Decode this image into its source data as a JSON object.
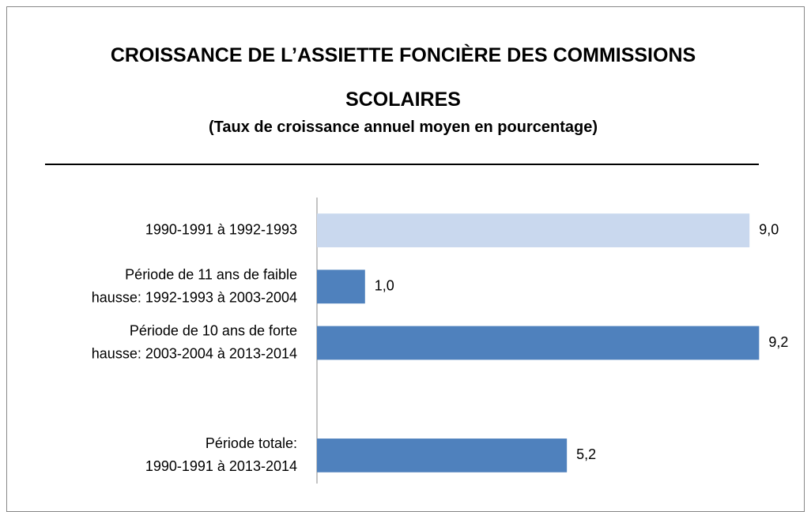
{
  "chart_data": {
    "type": "barh",
    "title": "CROISSANCE DE L’ASSIETTE FONCIÈRE DES COMMISSIONS SCOLAIRES",
    "subtitle": "(Taux de croissance annuel moyen en pourcentage)",
    "categories": [
      "1990-1991 à 1992-1993",
      "Période de 11 ans de faible\nhausse: 1992-1993 à 2003-2004",
      "Période de 10 ans de forte\nhausse: 2003-2004 à 2013-2014",
      null,
      "Période totale:\n1990-1991 à 2013-2014"
    ],
    "values": [
      9.0,
      1.0,
      9.2,
      null,
      5.2
    ],
    "value_labels": [
      "9,0",
      "1,0",
      "9,2",
      null,
      "5,2"
    ],
    "colors": [
      "#c9d8ee",
      "#4f81bd",
      "#4f81bd",
      "#4f81bd",
      "#4f81bd"
    ],
    "xlim": [
      0,
      10
    ]
  }
}
